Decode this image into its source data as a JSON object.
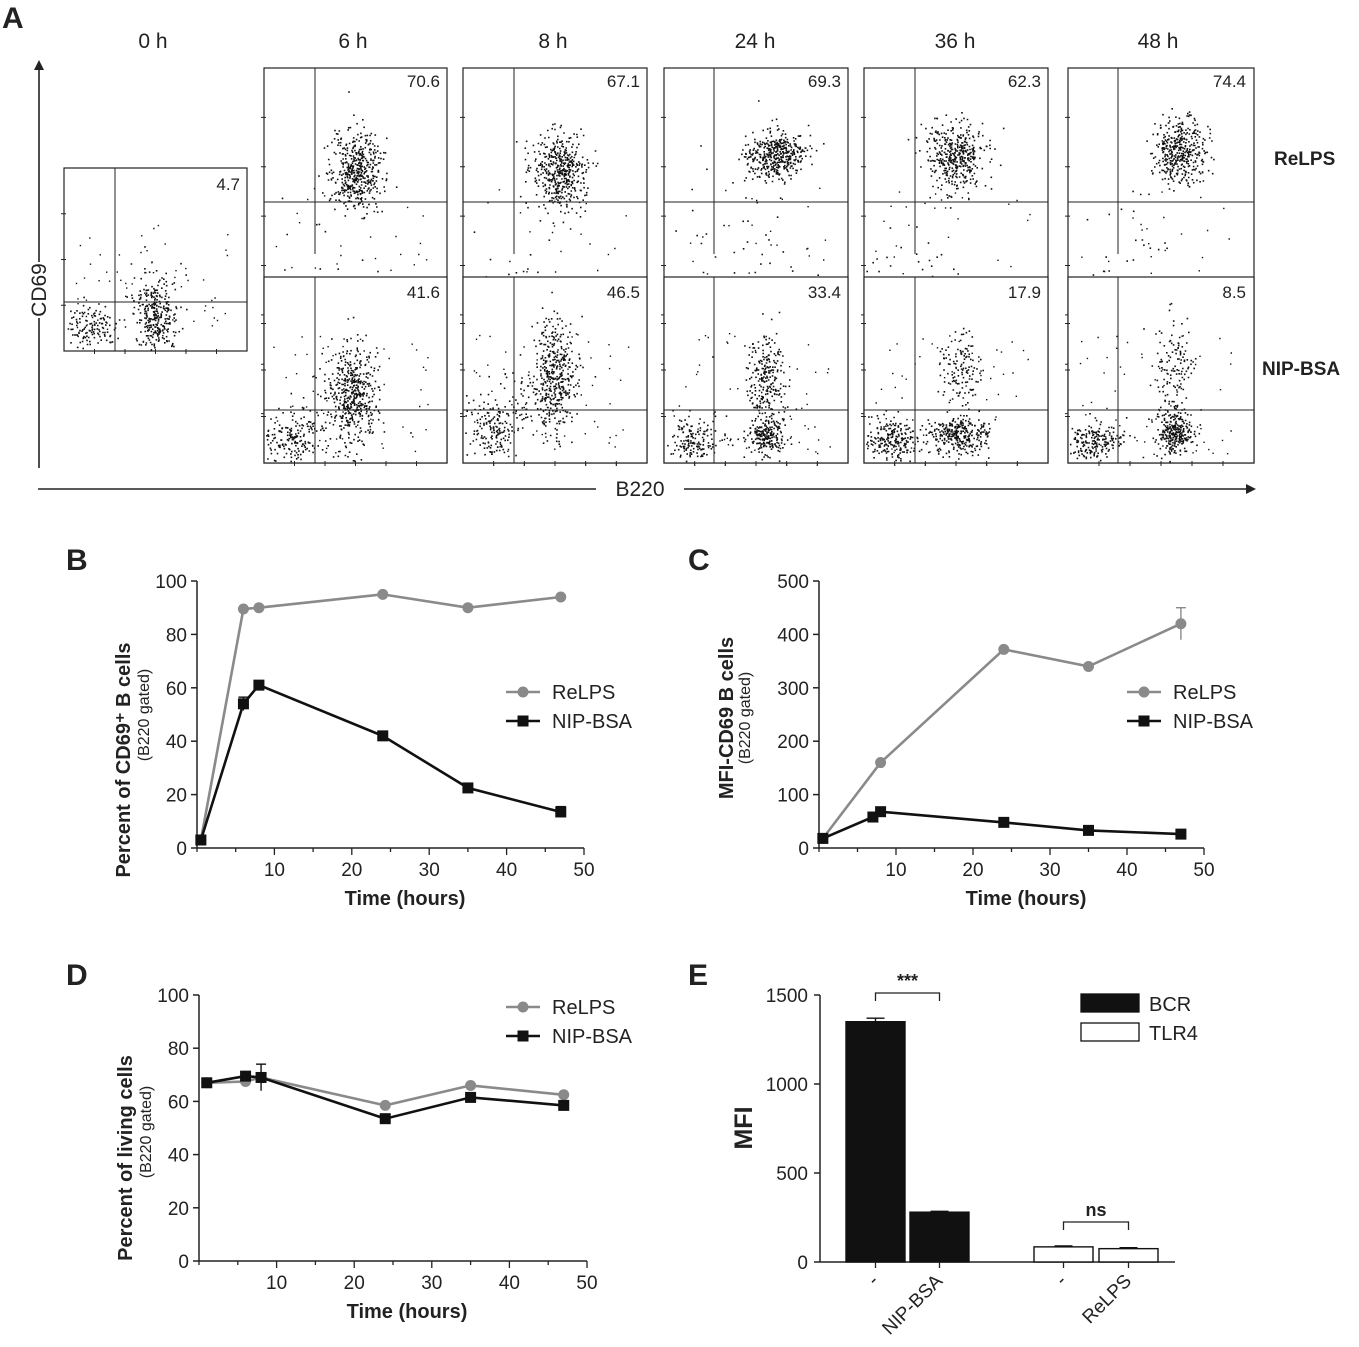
{
  "panel_labels": {
    "a": "A",
    "b": "B",
    "c": "C",
    "d": "D",
    "e": "E"
  },
  "panel_a": {
    "timepoints": [
      "0 h",
      "6 h",
      "8 h",
      "24 h",
      "36 h",
      "48 h"
    ],
    "row_labels": [
      "ReLPS",
      "NIP-BSA"
    ],
    "y_axis_label": "CD69",
    "x_axis_label": "B220",
    "values_0h": "4.7",
    "values_relps": [
      "70.6",
      "67.1",
      "69.3",
      "62.3",
      "74.4"
    ],
    "values_nipbsa": [
      "41.6",
      "46.5",
      "33.4",
      "17.9",
      "8.5"
    ]
  },
  "chart_data": [
    {
      "panel": "B",
      "type": "line",
      "ylabel": "Percent of CD69⁺ B cells",
      "ylabel_sub": "(B220 gated)",
      "xlabel": "Time (hours)",
      "xlim": [
        0,
        50
      ],
      "ylim": [
        0,
        100
      ],
      "xticks": [
        10,
        20,
        30,
        40,
        50
      ],
      "yticks": [
        0,
        20,
        40,
        60,
        80,
        100
      ],
      "legend_position": "right",
      "series": [
        {
          "name": "ReLPS",
          "color": "#8a8a8a",
          "marker": "circle",
          "x": [
            0.5,
            6,
            8,
            24,
            35,
            47
          ],
          "y": [
            3,
            89.5,
            90,
            95,
            90,
            94
          ],
          "err": [
            0,
            0,
            0,
            0,
            0,
            0
          ]
        },
        {
          "name": "NIP-BSA",
          "color": "#111111",
          "marker": "square",
          "x": [
            0.5,
            6,
            8,
            24,
            35,
            47
          ],
          "y": [
            3,
            54,
            61,
            42,
            22.5,
            13.5
          ],
          "err": [
            0,
            2.5,
            0,
            0,
            0,
            2
          ]
        }
      ]
    },
    {
      "panel": "C",
      "type": "line",
      "ylabel": "MFI-CD69 B cells",
      "ylabel_sub": "(B220 gated)",
      "xlabel": "Time (hours)",
      "xlim": [
        0,
        50
      ],
      "ylim": [
        0,
        500
      ],
      "xticks": [
        10,
        20,
        30,
        40,
        50
      ],
      "yticks": [
        0,
        100,
        200,
        300,
        400,
        500
      ],
      "legend_position": "right",
      "series": [
        {
          "name": "ReLPS",
          "color": "#8a8a8a",
          "marker": "circle",
          "x": [
            0.5,
            7,
            8,
            24,
            35,
            47
          ],
          "y": [
            18,
            0,
            160,
            372,
            340,
            420
          ],
          "err": [
            0,
            0,
            0,
            0,
            0,
            30
          ],
          "skip": [
            1
          ]
        },
        {
          "name": "NIP-BSA",
          "color": "#111111",
          "marker": "square",
          "x": [
            0.5,
            7,
            8,
            24,
            35,
            47
          ],
          "y": [
            18,
            58,
            68,
            48,
            33,
            26
          ],
          "err": [
            0,
            0,
            0,
            0,
            0,
            0
          ]
        }
      ]
    },
    {
      "panel": "D",
      "type": "line",
      "ylabel": "Percent of living cells",
      "ylabel_sub": "(B220 gated)",
      "xlabel": "Time (hours)",
      "xlim": [
        0,
        50
      ],
      "ylim": [
        0,
        100
      ],
      "xticks": [
        10,
        20,
        30,
        40,
        50
      ],
      "yticks": [
        0,
        20,
        40,
        60,
        80,
        100
      ],
      "legend_position": "top-right",
      "series": [
        {
          "name": "ReLPS",
          "color": "#8a8a8a",
          "marker": "circle",
          "x": [
            1,
            6,
            8,
            24,
            35,
            47
          ],
          "y": [
            67,
            67.5,
            69,
            58.5,
            66,
            62.5
          ],
          "err": [
            0,
            1.5,
            0,
            0,
            0,
            0
          ]
        },
        {
          "name": "NIP-BSA",
          "color": "#111111",
          "marker": "square",
          "x": [
            1,
            6,
            8,
            24,
            35,
            47
          ],
          "y": [
            67,
            69.5,
            69,
            53.5,
            61.5,
            58.5
          ],
          "err": [
            0,
            0,
            5,
            0,
            0,
            0
          ]
        }
      ]
    },
    {
      "panel": "E",
      "type": "bar",
      "ylabel": "MFI",
      "ylim": [
        0,
        1500
      ],
      "yticks": [
        0,
        500,
        1000,
        1500
      ],
      "categories": [
        "-",
        "NIP-BSA",
        "-",
        "ReLPS"
      ],
      "values": [
        1350,
        280,
        85,
        75
      ],
      "errors": [
        20,
        5,
        5,
        5
      ],
      "bar_fill": [
        "#111111",
        "#111111",
        "#ffffff",
        "#ffffff"
      ],
      "legend": [
        {
          "name": "BCR",
          "fill": "#111111"
        },
        {
          "name": "TLR4",
          "fill": "#ffffff"
        }
      ],
      "legend_position": "top-right",
      "significance": [
        {
          "bars": [
            0,
            1
          ],
          "label": "***"
        },
        {
          "bars": [
            2,
            3
          ],
          "label": "ns"
        }
      ]
    }
  ]
}
